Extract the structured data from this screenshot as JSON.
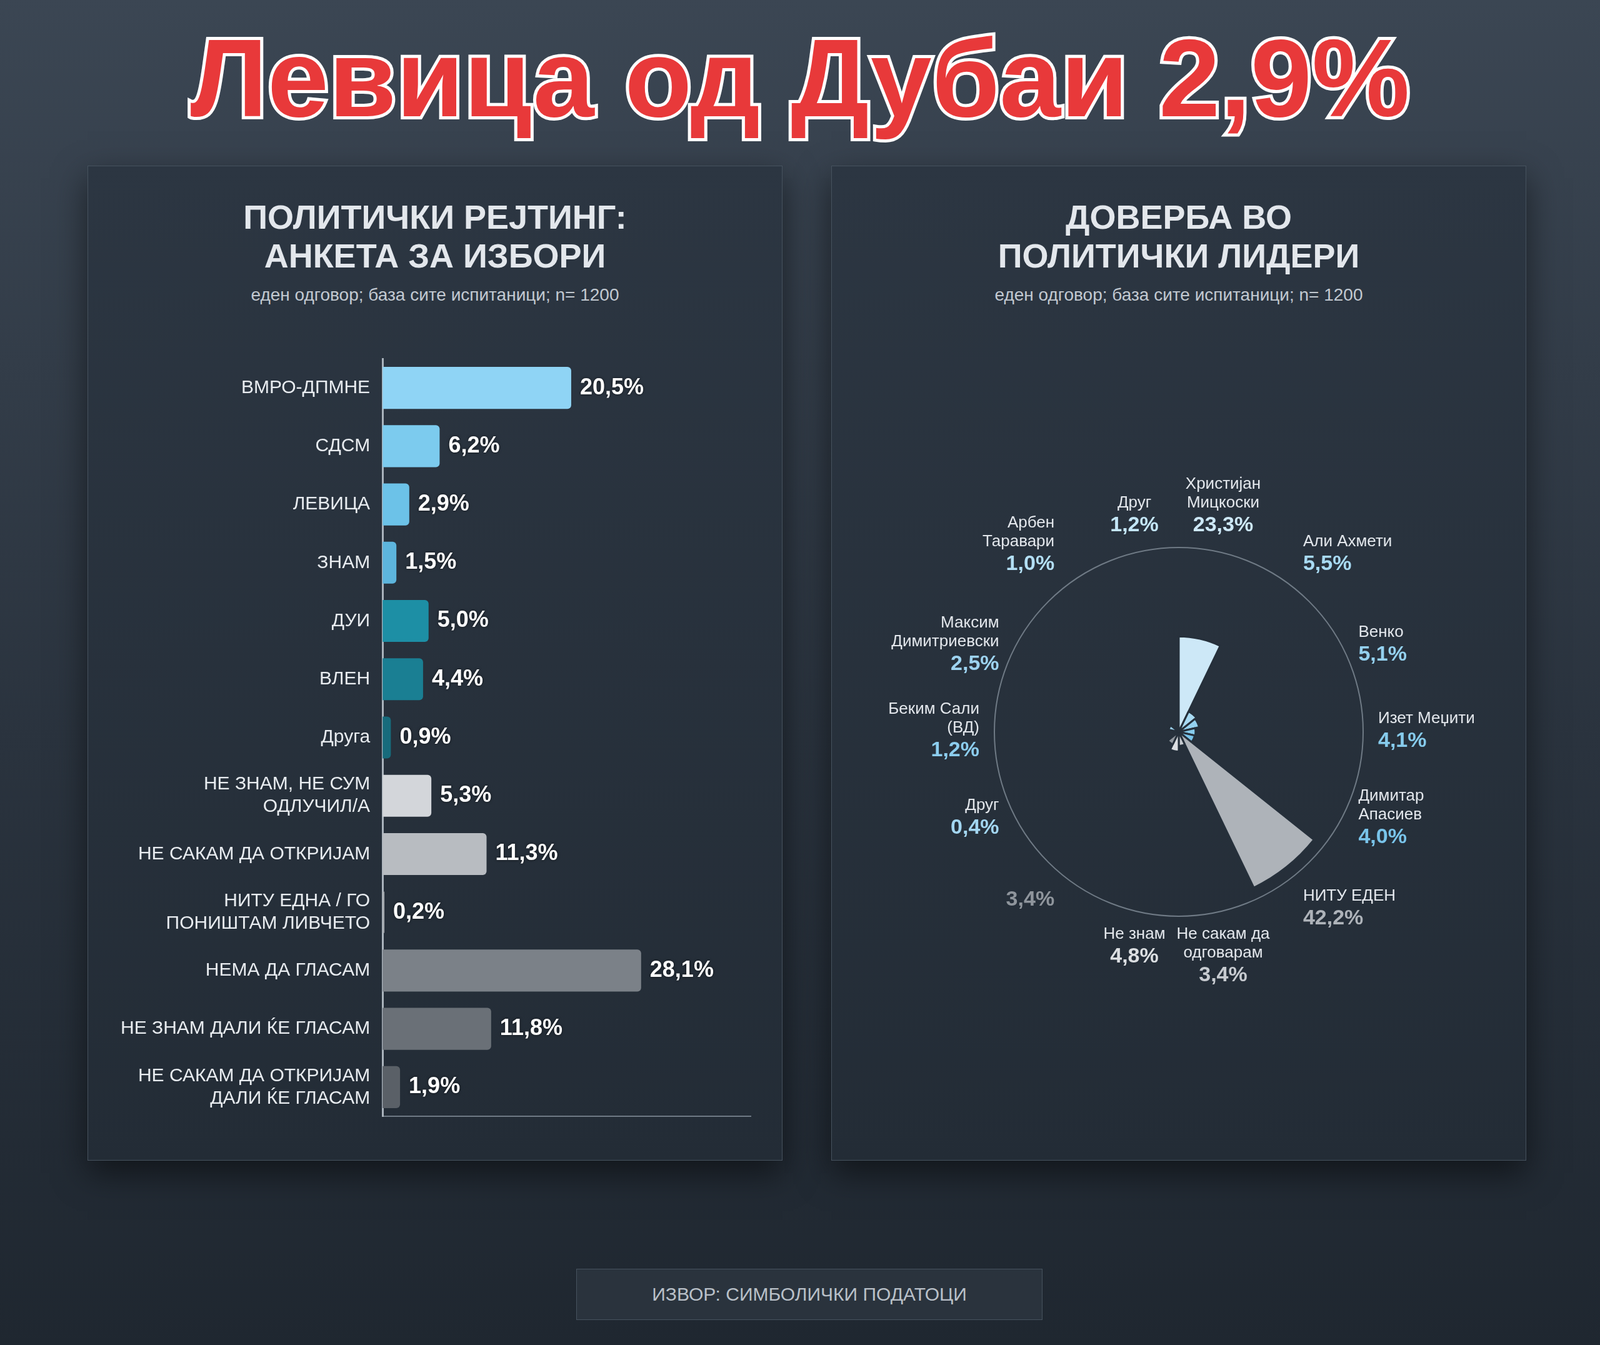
{
  "title": "Левица од Дубаи 2,9%",
  "footer": "ИЗВОР: СИМБОЛИЧКИ ПОДАТОЦИ",
  "chart_data": [
    {
      "type": "bar",
      "orientation": "horizontal",
      "title": "ПОЛИТИЧКИ РЕЈТИНГ: АНКЕТА ЗА ИЗБОРИ",
      "subtitle": "еден одговор; база сите испитаници; n= 1200",
      "categories": [
        "ВМРО-ДПМНЕ",
        "СДСМ",
        "ЛЕВИЦА",
        "ЗНАМ",
        "ДУИ",
        "ВЛЕН",
        "Друга",
        "НЕ ЗНАМ, НЕ СУМ ОДЛУЧИЛ/А",
        "НЕ САКАМ ДА ОТКРИЈАМ",
        "НИТУ ЕДНА / ГО ПОНИШТАМ ЛИВЧЕТО",
        "НЕМА ДА ГЛАСАМ",
        "НЕ ЗНАМ ДАЛИ ЌЕ ГЛАСАМ",
        "НЕ САКАМ ДА ОТКРИЈАМ ДАЛИ ЌЕ ГЛАСАМ"
      ],
      "values": [
        20.5,
        6.2,
        2.9,
        1.5,
        5.0,
        4.4,
        0.9,
        5.3,
        11.3,
        0.2,
        28.1,
        11.8,
        1.9
      ],
      "value_labels": [
        "20,5%",
        "6,2%",
        "2,9%",
        "1,5%",
        "5,0%",
        "4,4%",
        "0,9%",
        "5,3%",
        "11,3%",
        "0,2%",
        "28,1%",
        "11,8%",
        "1,9%"
      ],
      "colors": [
        "#8fd4f5",
        "#7ccbee",
        "#6cc2e8",
        "#5db5dd",
        "#1d8fa5",
        "#1a7f93",
        "#176b7c",
        "#d3d6da",
        "#b8bcc1",
        "#a3a8ae",
        "#7b8188",
        "#6a7077",
        "#5a6067"
      ],
      "xlim": [
        0,
        40
      ],
      "grid": false,
      "tick_labels": "y",
      "data_labels": true
    },
    {
      "type": "polarArea",
      "title": "ДОВЕРБА ВО ПОЛИТИЧКИ ЛИДЕРИ",
      "subtitle": "еден одговор; база сите испитаници; n= 1200",
      "categories": [
        "Христијан Мицкоски",
        "Али Ахмети",
        "Венко",
        "Изет Меџити",
        "Димитар Апасиев",
        "НИТУ ЕДЕН",
        "Не сакам да одговарам",
        "Не знам",
        null,
        "Друг",
        "Беким Сали (ВД)",
        "Максим Димитриевски",
        "Арбен Таравари",
        "Друг"
      ],
      "values": [
        23.3,
        5.5,
        5.1,
        4.1,
        4.0,
        42.2,
        3.4,
        4.8,
        3.4,
        0.4,
        1.2,
        2.5,
        1.0,
        1.2
      ],
      "value_labels": [
        "23,3%",
        "5,5%",
        "5,1%",
        "4,1%",
        "4,0%",
        "42,2%",
        "3,4%",
        "4,8%",
        "3,4%",
        "0,4%",
        "1,2%",
        "2,5%",
        "1,0%",
        "1,2%"
      ],
      "colors": [
        "#cde8f7",
        "#a8daf3",
        "#94d1ef",
        "#86cbec",
        "#79c4ea",
        "#aeb3b9",
        "#c7cbd0",
        "#dcdfe2",
        "#8f959c",
        "#a3d6f1",
        "#8ccdee",
        "#9dd3f0",
        "#b3dff5",
        "#c4e6f7"
      ],
      "ylim": [
        0,
        45
      ],
      "grid": false,
      "tick_labels": false,
      "data_labels": true
    }
  ]
}
